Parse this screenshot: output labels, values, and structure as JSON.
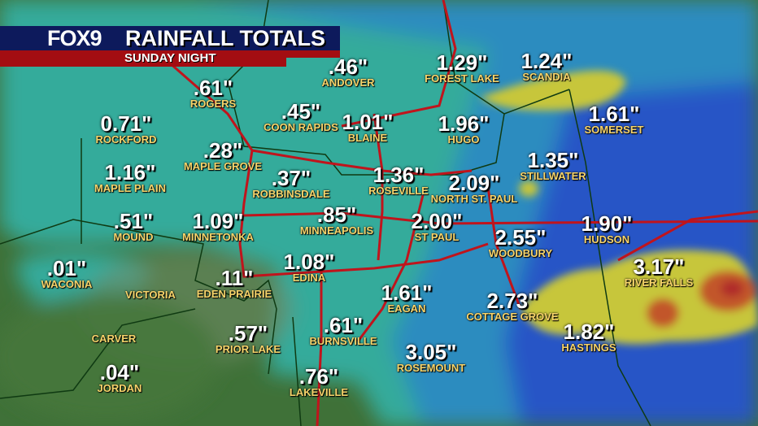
{
  "header": {
    "logo": "FOX9",
    "title": "RAINFALL TOTALS",
    "subtitle": "SUNDAY NIGHT"
  },
  "colors": {
    "banner_blue": "#0d1a5c",
    "banner_red": "#a30d12",
    "value_text": "#ffffff",
    "city_text": "#f6d36a",
    "roads": "#c0141c",
    "land": "#3d6e3a",
    "light_rain": "#2fb3b3",
    "moderate_rain": "#2a5fd0",
    "heavy_rain": "#c7c63a",
    "very_heavy_rain": "#c2562a"
  },
  "locations": [
    {
      "city": "ANDOVER",
      "value": ".46\""
    },
    {
      "city": "FOREST LAKE",
      "value": "1.29\""
    },
    {
      "city": "SCANDIA",
      "value": "1.24\""
    },
    {
      "city": "ROGERS",
      "value": ".61\""
    },
    {
      "city": "COON RAPIDS",
      "value": ".45\""
    },
    {
      "city": "BLAINE",
      "value": "1.01\""
    },
    {
      "city": "HUGO",
      "value": "1.96\""
    },
    {
      "city": "SOMERSET",
      "value": "1.61\""
    },
    {
      "city": "ROCKFORD",
      "value": "0.71\""
    },
    {
      "city": "MAPLE GROVE",
      "value": ".28\""
    },
    {
      "city": "STILLWATER",
      "value": "1.35\""
    },
    {
      "city": "MAPLE PLAIN",
      "value": "1.16\""
    },
    {
      "city": "ROBBINSDALE",
      "value": ".37\""
    },
    {
      "city": "ROSEVILLE",
      "value": "1.36\""
    },
    {
      "city": "NORTH ST. PAUL",
      "value": "2.09\""
    },
    {
      "city": "MOUND",
      "value": ".51\""
    },
    {
      "city": "MINNETONKA",
      "value": "1.09\""
    },
    {
      "city": "MINNEAPOLIS",
      "value": ".85\""
    },
    {
      "city": "ST PAUL",
      "value": "2.00\""
    },
    {
      "city": "WOODBURY",
      "value": "2.55\""
    },
    {
      "city": "HUDSON",
      "value": "1.90\""
    },
    {
      "city": "RIVER FALLS",
      "value": "3.17\""
    },
    {
      "city": "WACONIA",
      "value": ".01\""
    },
    {
      "city": "EDEN PRAIRIE",
      "value": ".11\""
    },
    {
      "city": "EDINA",
      "value": "1.08\""
    },
    {
      "city": "VICTORIA",
      "value": ""
    },
    {
      "city": "EAGAN",
      "value": "1.61\""
    },
    {
      "city": "COTTAGE GROVE",
      "value": "2.73\""
    },
    {
      "city": "HASTINGS",
      "value": "1.82\""
    },
    {
      "city": "BURNSVILLE",
      "value": ".61\""
    },
    {
      "city": "CARVER",
      "value": ""
    },
    {
      "city": "PRIOR LAKE",
      "value": ".57\""
    },
    {
      "city": "ROSEMOUNT",
      "value": "3.05\""
    },
    {
      "city": "JORDAN",
      "value": ".04\""
    },
    {
      "city": "LAKEVILLE",
      "value": ".76\""
    }
  ]
}
